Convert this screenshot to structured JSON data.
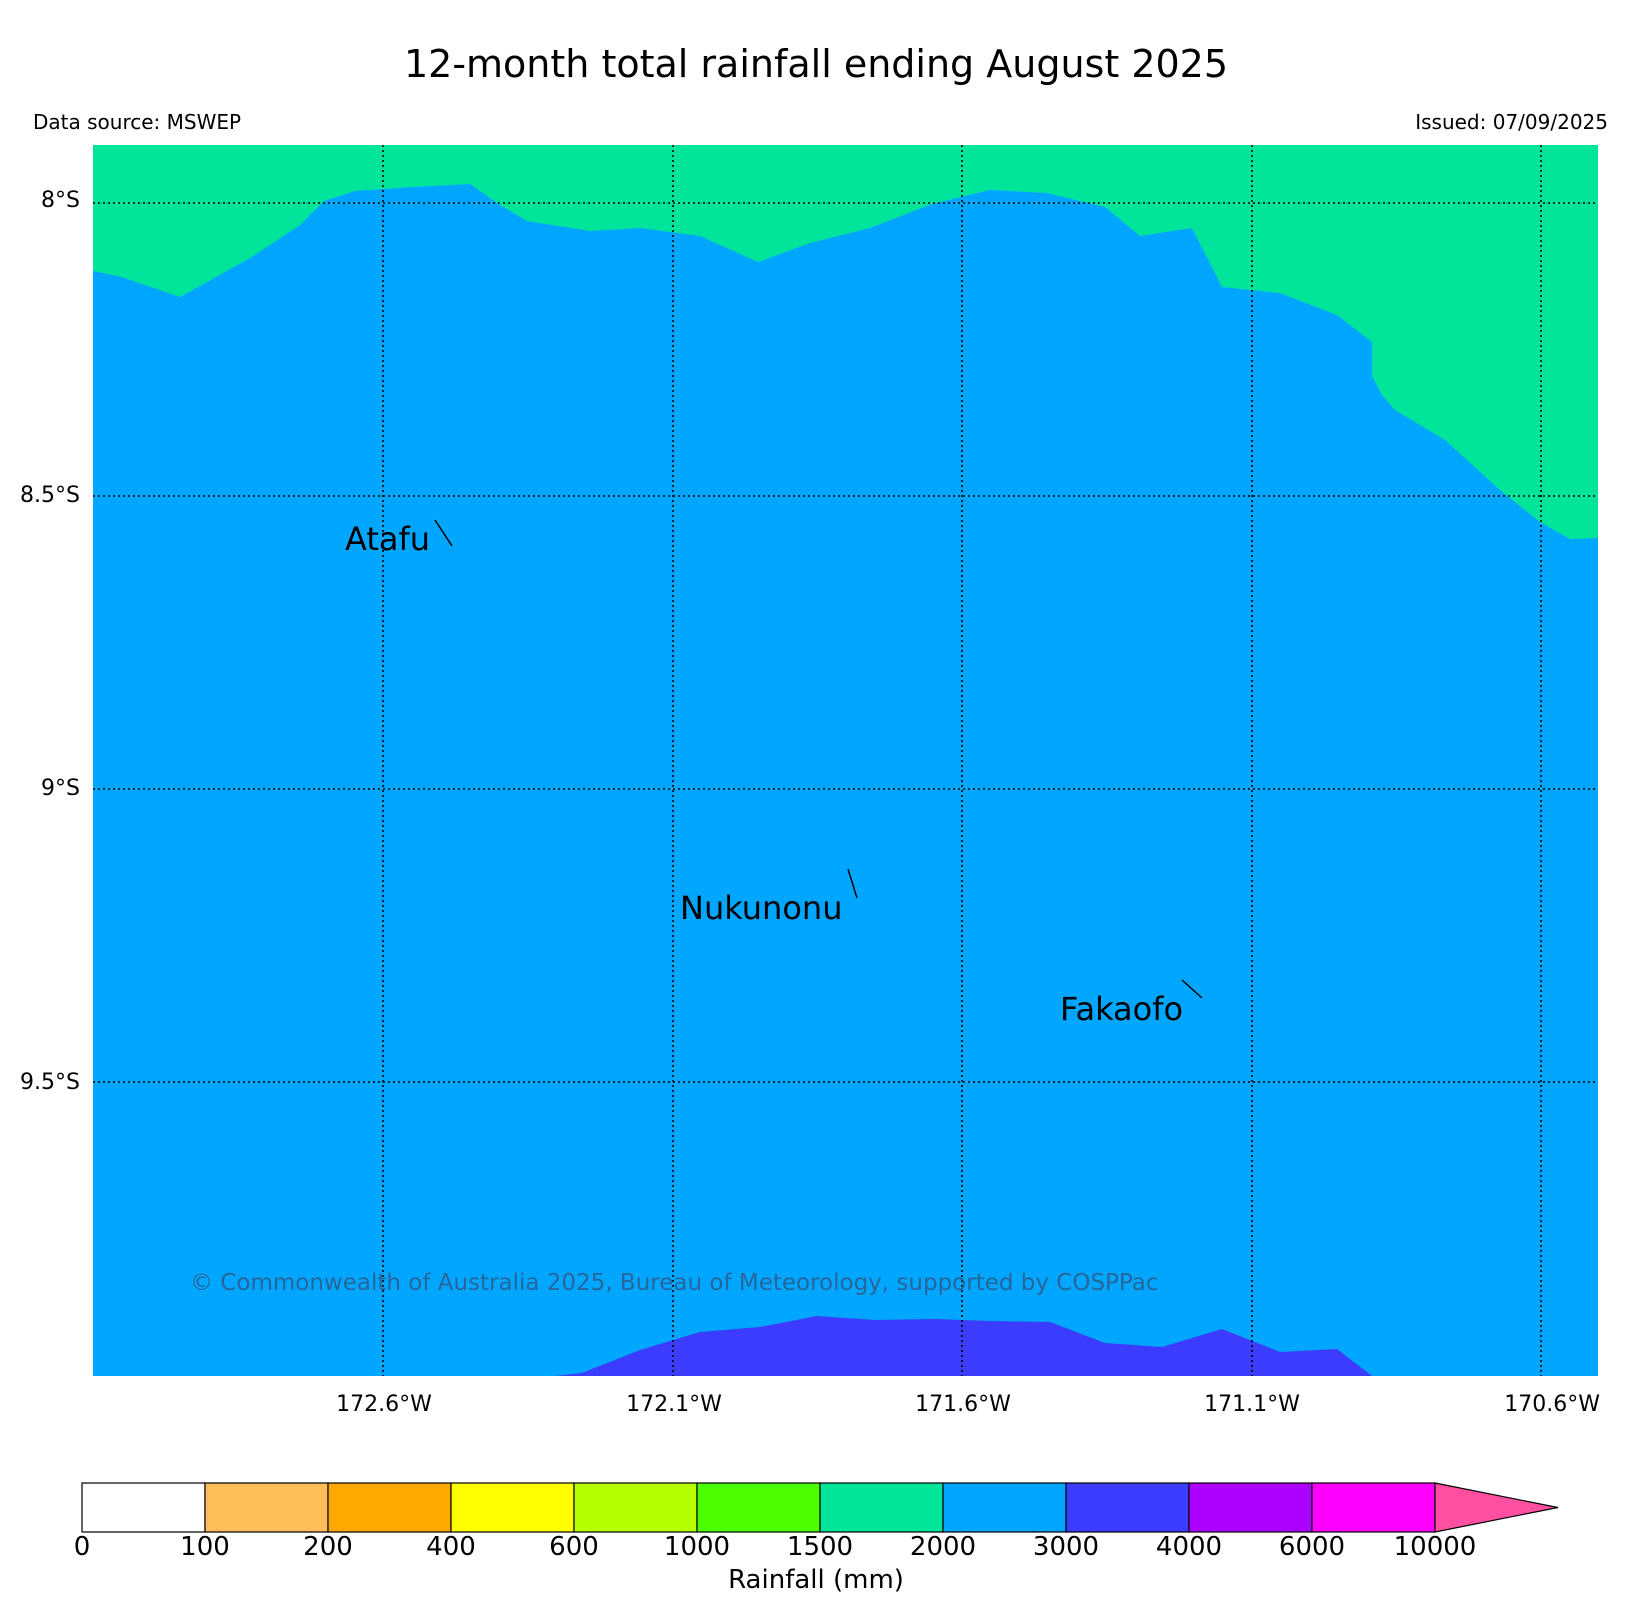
{
  "header": {
    "title": "12-month total rainfall ending August 2025",
    "data_source": "Data source: MSWEP",
    "issued": "Issued: 07/09/2025"
  },
  "map": {
    "lat_labels": [
      "8°S",
      "8.5°S",
      "9°S",
      "9.5°S"
    ],
    "lon_labels": [
      "172.6°W",
      "172.1°W",
      "171.6°W",
      "171.1°W",
      "170.6°W"
    ],
    "places": [
      {
        "name": "Atafu"
      },
      {
        "name": "Nukunonu"
      },
      {
        "name": "Fakaofo"
      }
    ],
    "copyright": "© Commonwealth of Australia 2025, Bureau of Meteorology, supported by COSPPac",
    "colors": {
      "band_1500_2000": "#00e59a",
      "band_2000_3000": "#00a6ff",
      "band_3000_4000": "#3c3cff"
    }
  },
  "colorbar": {
    "title": "Rainfall (mm)",
    "ticks": [
      "0",
      "100",
      "200",
      "400",
      "600",
      "1000",
      "1500",
      "2000",
      "3000",
      "4000",
      "6000",
      "10000"
    ],
    "colors": [
      "#ffffff",
      "#ffbe5a",
      "#ffa800",
      "#ffff00",
      "#b4ff00",
      "#4cff00",
      "#00e59a",
      "#00a6ff",
      "#3c3cff",
      "#ae00ff",
      "#ff00ff",
      "#ff4fa0"
    ]
  }
}
